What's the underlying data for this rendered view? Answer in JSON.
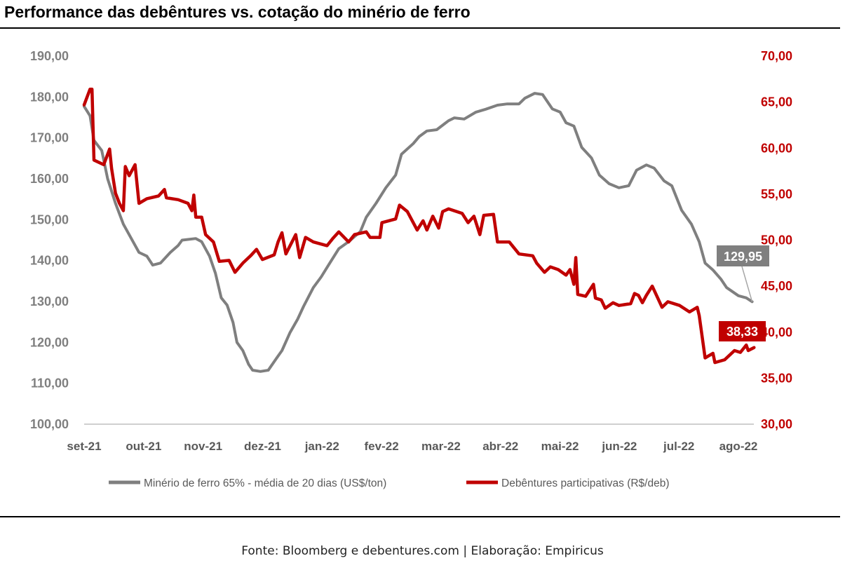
{
  "chart_data": {
    "type": "line",
    "title": "Performance das debêntures vs. cotação do minério de ferro",
    "x_tick_labels": [
      "set-21",
      "out-21",
      "nov-21",
      "dez-21",
      "jan-22",
      "fev-22",
      "mar-22",
      "abr-22",
      "mai-22",
      "jun-22",
      "jul-22",
      "ago-22"
    ],
    "left_axis": {
      "range": [
        100,
        190
      ],
      "ticks": [
        "100,00",
        "110,00",
        "120,00",
        "130,00",
        "140,00",
        "150,00",
        "160,00",
        "170,00",
        "180,00",
        "190,00"
      ],
      "color": "#7f7f7f"
    },
    "right_axis": {
      "range": [
        30,
        70
      ],
      "ticks": [
        "30,00",
        "35,00",
        "40,00",
        "45,00",
        "50,00",
        "55,00",
        "60,00",
        "65,00",
        "70,00"
      ],
      "color": "#c00000"
    },
    "grid": false,
    "legend_placement": "bottom",
    "series": [
      {
        "name": "Minério de ferro 65% - média de 20 dias (US$/ton)",
        "axis": "left",
        "color": "#7f7f7f",
        "end_label": "129,95",
        "points": [
          [
            "2021-09-01",
            177.7
          ],
          [
            "2021-09-04",
            175.4
          ],
          [
            "2021-09-06",
            169.4
          ],
          [
            "2021-09-10",
            166.9
          ],
          [
            "2021-09-13",
            160.0
          ],
          [
            "2021-09-17",
            154.0
          ],
          [
            "2021-09-21",
            148.9
          ],
          [
            "2021-09-26",
            144.6
          ],
          [
            "2021-09-29",
            142.0
          ],
          [
            "2021-10-03",
            141.1
          ],
          [
            "2021-10-06",
            138.9
          ],
          [
            "2021-10-10",
            139.4
          ],
          [
            "2021-10-15",
            142.0
          ],
          [
            "2021-10-19",
            143.7
          ],
          [
            "2021-10-21",
            145.0
          ],
          [
            "2021-10-28",
            145.4
          ],
          [
            "2021-10-31",
            144.6
          ],
          [
            "2021-11-04",
            141.1
          ],
          [
            "2021-11-07",
            136.9
          ],
          [
            "2021-11-10",
            130.9
          ],
          [
            "2021-11-13",
            129.1
          ],
          [
            "2021-11-16",
            124.9
          ],
          [
            "2021-11-18",
            120.0
          ],
          [
            "2021-11-21",
            118.0
          ],
          [
            "2021-11-24",
            114.6
          ],
          [
            "2021-11-26",
            113.2
          ],
          [
            "2021-11-30",
            112.9
          ],
          [
            "2021-12-04",
            113.2
          ],
          [
            "2021-12-08",
            116.0
          ],
          [
            "2021-12-11",
            118.0
          ],
          [
            "2021-12-15",
            122.3
          ],
          [
            "2021-12-19",
            125.7
          ],
          [
            "2021-12-22",
            128.8
          ],
          [
            "2021-12-27",
            133.4
          ],
          [
            "2021-12-31",
            136.0
          ],
          [
            "2022-01-04",
            139.1
          ],
          [
            "2022-01-09",
            142.9
          ],
          [
            "2022-01-14",
            144.6
          ],
          [
            "2022-01-20",
            147.1
          ],
          [
            "2022-01-23",
            150.6
          ],
          [
            "2022-01-28",
            154.0
          ],
          [
            "2022-02-02",
            157.8
          ],
          [
            "2022-02-07",
            160.9
          ],
          [
            "2022-02-10",
            166.0
          ],
          [
            "2022-02-16",
            168.6
          ],
          [
            "2022-02-19",
            170.3
          ],
          [
            "2022-02-23",
            171.7
          ],
          [
            "2022-02-28",
            172.0
          ],
          [
            "2022-03-06",
            174.2
          ],
          [
            "2022-03-09",
            174.9
          ],
          [
            "2022-03-14",
            174.6
          ],
          [
            "2022-03-20",
            176.3
          ],
          [
            "2022-03-25",
            177.0
          ],
          [
            "2022-03-31",
            178.0
          ],
          [
            "2022-04-05",
            178.3
          ],
          [
            "2022-04-11",
            178.3
          ],
          [
            "2022-04-14",
            179.7
          ],
          [
            "2022-04-19",
            180.9
          ],
          [
            "2022-04-23",
            180.6
          ],
          [
            "2022-04-28",
            177.1
          ],
          [
            "2022-05-02",
            176.3
          ],
          [
            "2022-05-05",
            173.7
          ],
          [
            "2022-05-09",
            172.9
          ],
          [
            "2022-05-13",
            167.7
          ],
          [
            "2022-05-18",
            165.1
          ],
          [
            "2022-05-22",
            160.9
          ],
          [
            "2022-05-27",
            158.8
          ],
          [
            "2022-06-01",
            157.8
          ],
          [
            "2022-06-06",
            158.3
          ],
          [
            "2022-06-10",
            162.1
          ],
          [
            "2022-06-15",
            163.4
          ],
          [
            "2022-06-19",
            162.6
          ],
          [
            "2022-06-24",
            159.5
          ],
          [
            "2022-06-28",
            158.3
          ],
          [
            "2022-07-03",
            152.3
          ],
          [
            "2022-07-08",
            148.9
          ],
          [
            "2022-07-12",
            144.6
          ],
          [
            "2022-07-15",
            139.4
          ],
          [
            "2022-07-19",
            137.7
          ],
          [
            "2022-07-23",
            135.5
          ],
          [
            "2022-07-26",
            133.4
          ],
          [
            "2022-08-01",
            131.4
          ],
          [
            "2022-08-05",
            130.9
          ],
          [
            "2022-08-08",
            129.95
          ]
        ]
      },
      {
        "name": "Debêntures participativas (R$/deb)",
        "axis": "right",
        "color": "#c00000",
        "end_label": "38,33",
        "points": [
          [
            "2021-09-01",
            64.7
          ],
          [
            "2021-09-04",
            66.4
          ],
          [
            "2021-09-05",
            66.4
          ],
          [
            "2021-09-06",
            58.7
          ],
          [
            "2021-09-11",
            58.2
          ],
          [
            "2021-09-14",
            59.9
          ],
          [
            "2021-09-15",
            57.8
          ],
          [
            "2021-09-17",
            55.1
          ],
          [
            "2021-09-19",
            54.0
          ],
          [
            "2021-09-21",
            53.2
          ],
          [
            "2021-09-22",
            58.0
          ],
          [
            "2021-09-24",
            57.0
          ],
          [
            "2021-09-27",
            58.2
          ],
          [
            "2021-09-29",
            54.0
          ],
          [
            "2021-10-03",
            54.5
          ],
          [
            "2021-10-09",
            54.8
          ],
          [
            "2021-10-12",
            55.5
          ],
          [
            "2021-10-13",
            54.6
          ],
          [
            "2021-10-19",
            54.4
          ],
          [
            "2021-10-24",
            54.0
          ],
          [
            "2021-10-26",
            53.2
          ],
          [
            "2021-10-27",
            54.9
          ],
          [
            "2021-10-28",
            52.5
          ],
          [
            "2021-10-31",
            52.5
          ],
          [
            "2021-11-02",
            50.6
          ],
          [
            "2021-11-06",
            49.8
          ],
          [
            "2021-11-09",
            47.7
          ],
          [
            "2021-11-14",
            47.8
          ],
          [
            "2021-11-17",
            46.5
          ],
          [
            "2021-11-21",
            47.5
          ],
          [
            "2021-11-25",
            48.3
          ],
          [
            "2021-11-28",
            49.0
          ],
          [
            "2021-12-01",
            47.9
          ],
          [
            "2021-12-07",
            48.4
          ],
          [
            "2021-12-09",
            49.8
          ],
          [
            "2021-12-11",
            50.8
          ],
          [
            "2021-12-13",
            48.5
          ],
          [
            "2021-12-18",
            50.6
          ],
          [
            "2021-12-20",
            48.1
          ],
          [
            "2021-12-23",
            50.3
          ],
          [
            "2021-12-27",
            49.8
          ],
          [
            "2022-01-03",
            49.4
          ],
          [
            "2022-01-06",
            50.2
          ],
          [
            "2022-01-09",
            50.9
          ],
          [
            "2022-01-14",
            49.8
          ],
          [
            "2022-01-17",
            50.6
          ],
          [
            "2022-01-23",
            50.9
          ],
          [
            "2022-01-25",
            50.3
          ],
          [
            "2022-01-30",
            50.3
          ],
          [
            "2022-01-31",
            51.9
          ],
          [
            "2022-02-07",
            52.3
          ],
          [
            "2022-02-09",
            53.8
          ],
          [
            "2022-02-13",
            53.1
          ],
          [
            "2022-02-18",
            51.1
          ],
          [
            "2022-02-21",
            52.1
          ],
          [
            "2022-02-23",
            51.1
          ],
          [
            "2022-02-26",
            52.6
          ],
          [
            "2022-03-01",
            51.3
          ],
          [
            "2022-03-03",
            53.1
          ],
          [
            "2022-03-06",
            53.4
          ],
          [
            "2022-03-13",
            52.9
          ],
          [
            "2022-03-16",
            51.9
          ],
          [
            "2022-03-19",
            52.6
          ],
          [
            "2022-03-22",
            50.6
          ],
          [
            "2022-03-24",
            52.7
          ],
          [
            "2022-03-29",
            52.8
          ],
          [
            "2022-03-31",
            49.8
          ],
          [
            "2022-04-06",
            49.8
          ],
          [
            "2022-04-11",
            48.5
          ],
          [
            "2022-04-18",
            48.3
          ],
          [
            "2022-04-20",
            47.5
          ],
          [
            "2022-04-24",
            46.5
          ],
          [
            "2022-04-27",
            47.1
          ],
          [
            "2022-05-01",
            46.8
          ],
          [
            "2022-05-05",
            46.2
          ],
          [
            "2022-05-07",
            46.8
          ],
          [
            "2022-05-09",
            45.2
          ],
          [
            "2022-05-10",
            48.1
          ],
          [
            "2022-05-11",
            44.1
          ],
          [
            "2022-05-15",
            43.9
          ],
          [
            "2022-05-19",
            45.2
          ],
          [
            "2022-05-20",
            43.7
          ],
          [
            "2022-05-23",
            43.5
          ],
          [
            "2022-05-25",
            42.6
          ],
          [
            "2022-05-29",
            43.2
          ],
          [
            "2022-06-01",
            42.9
          ],
          [
            "2022-06-07",
            43.1
          ],
          [
            "2022-06-09",
            44.2
          ],
          [
            "2022-06-11",
            44.0
          ],
          [
            "2022-06-13",
            43.2
          ],
          [
            "2022-06-15",
            44.0
          ],
          [
            "2022-06-18",
            45.0
          ],
          [
            "2022-06-23",
            42.7
          ],
          [
            "2022-06-26",
            43.3
          ],
          [
            "2022-07-02",
            42.9
          ],
          [
            "2022-07-07",
            42.2
          ],
          [
            "2022-07-11",
            42.7
          ],
          [
            "2022-07-12",
            41.8
          ],
          [
            "2022-07-15",
            37.2
          ],
          [
            "2022-07-19",
            37.7
          ],
          [
            "2022-07-20",
            36.7
          ],
          [
            "2022-07-25",
            37.0
          ],
          [
            "2022-07-30",
            38.0
          ],
          [
            "2022-08-02",
            37.8
          ],
          [
            "2022-08-05",
            38.6
          ],
          [
            "2022-08-06",
            38.0
          ],
          [
            "2022-08-09",
            38.33
          ]
        ]
      }
    ]
  },
  "footer": "Fonte: Bloomberg e debentures.com | Elaboração: Empiricus"
}
